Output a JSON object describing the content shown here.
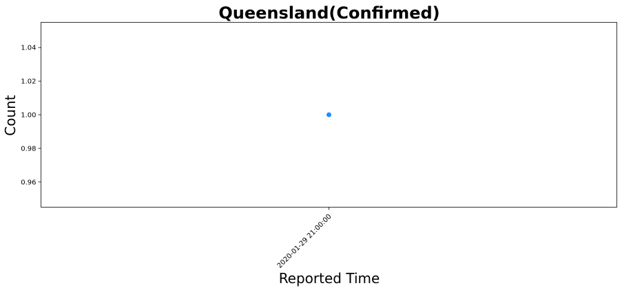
{
  "chart_data": {
    "type": "scatter",
    "title": "Queensland(Confirmed)",
    "xlabel": "Reported Time",
    "ylabel": "Count",
    "x": [
      "2020-01-29 21:00:00"
    ],
    "series": [
      {
        "name": "Confirmed",
        "values": [
          1.0
        ],
        "color": "#1e90ff"
      }
    ],
    "ylim": [
      0.945,
      1.055
    ],
    "yticks": [
      0.96,
      0.98,
      1.0,
      1.02,
      1.04
    ],
    "ytick_labels": [
      "0.96",
      "0.98",
      "1.00",
      "1.02",
      "1.04"
    ],
    "xtick_labels": [
      "2020-01-29 21:00:00"
    ],
    "grid": false,
    "legend": "none"
  }
}
